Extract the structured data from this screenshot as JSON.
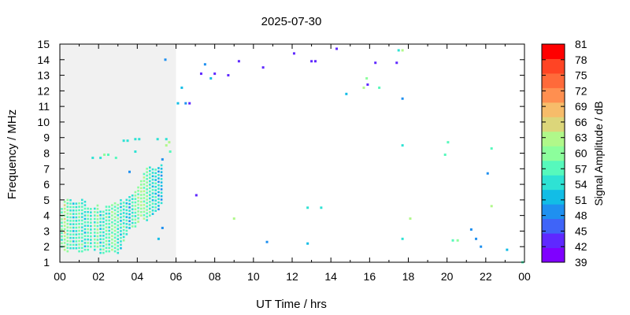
{
  "chart_data": {
    "type": "scatter",
    "title": "2025-07-30",
    "xlabel": "UT Time / hrs",
    "ylabel": "Frequency / MHz",
    "colorbar_label": "Signal Amplitude / dB",
    "xlim": [
      0,
      24
    ],
    "ylim": [
      1,
      15
    ],
    "x_ticks": [
      "00",
      "02",
      "04",
      "06",
      "08",
      "10",
      "12",
      "14",
      "16",
      "18",
      "20",
      "22",
      "00"
    ],
    "y_ticks": [
      "1",
      "2",
      "3",
      "4",
      "5",
      "6",
      "7",
      "8",
      "9",
      "10",
      "11",
      "12",
      "13",
      "14",
      "15"
    ],
    "colorbar_ticks": [
      "39",
      "42",
      "45",
      "48",
      "51",
      "54",
      "57",
      "60",
      "63",
      "66",
      "69",
      "72",
      "75",
      "78",
      "81"
    ],
    "colorbar_range": [
      39,
      81
    ],
    "colorbar_colors": [
      "#7f00ff",
      "#5f28ff",
      "#3f64f8",
      "#1f90f0",
      "#12bde6",
      "#2ee2d4",
      "#56f9bc",
      "#8cfe9c",
      "#b0f88a",
      "#dcd67a",
      "#f7bc6a",
      "#ff8f50",
      "#ff6a3a",
      "#ff4424",
      "#ff0000"
    ],
    "region_gray": {
      "x": [
        0,
        6
      ],
      "y": [
        1,
        15
      ]
    },
    "points": [
      [
        5.45,
        14.0,
        50
      ],
      [
        7.3,
        13.1,
        44
      ],
      [
        7.5,
        13.7,
        50
      ],
      [
        7.8,
        12.8,
        52
      ],
      [
        8.0,
        13.1,
        44
      ],
      [
        8.7,
        13.0,
        43
      ],
      [
        9.25,
        13.9,
        43
      ],
      [
        10.5,
        13.5,
        42
      ],
      [
        12.1,
        14.4,
        43
      ],
      [
        13.0,
        13.9,
        44
      ],
      [
        13.2,
        13.9,
        44
      ],
      [
        14.3,
        14.7,
        42
      ],
      [
        16.3,
        13.8,
        44
      ],
      [
        17.4,
        13.8,
        42
      ],
      [
        17.5,
        14.6,
        54
      ],
      [
        17.7,
        14.6,
        62
      ],
      [
        15.9,
        12.4,
        42
      ],
      [
        15.85,
        12.8,
        60
      ],
      [
        15.7,
        12.2,
        64
      ],
      [
        16.5,
        12.2,
        58
      ],
      [
        14.8,
        11.8,
        52
      ],
      [
        17.7,
        11.5,
        50
      ],
      [
        6.3,
        12.2,
        52
      ],
      [
        6.1,
        11.2,
        52
      ],
      [
        6.5,
        11.2,
        50
      ],
      [
        6.7,
        11.2,
        44
      ],
      [
        3.3,
        8.8,
        54
      ],
      [
        3.5,
        8.8,
        54
      ],
      [
        3.9,
        8.9,
        54
      ],
      [
        4.1,
        8.9,
        54
      ],
      [
        5.05,
        8.9,
        54
      ],
      [
        5.5,
        8.9,
        54
      ],
      [
        5.65,
        8.7,
        62
      ],
      [
        5.5,
        8.5,
        64
      ],
      [
        5.7,
        8.1,
        56
      ],
      [
        3.9,
        8.1,
        54
      ],
      [
        2.3,
        7.9,
        60
      ],
      [
        2.5,
        7.9,
        58
      ],
      [
        1.7,
        7.7,
        54
      ],
      [
        2.1,
        7.7,
        54
      ],
      [
        2.9,
        7.7,
        58
      ],
      [
        5.3,
        7.6,
        48
      ],
      [
        3.6,
        6.8,
        50
      ],
      [
        7.05,
        5.3,
        44
      ],
      [
        9.0,
        3.8,
        62
      ],
      [
        5.3,
        3.2,
        50
      ],
      [
        5.1,
        2.5,
        52
      ],
      [
        10.7,
        2.3,
        48
      ],
      [
        12.8,
        2.2,
        52
      ],
      [
        12.8,
        4.5,
        54
      ],
      [
        13.5,
        4.5,
        54
      ],
      [
        17.7,
        8.5,
        54
      ],
      [
        17.7,
        2.5,
        54
      ],
      [
        18.1,
        3.8,
        64
      ],
      [
        19.9,
        7.9,
        58
      ],
      [
        20.05,
        8.7,
        58
      ],
      [
        20.3,
        2.4,
        58
      ],
      [
        20.55,
        2.4,
        60
      ],
      [
        21.25,
        3.1,
        50
      ],
      [
        21.5,
        2.5,
        50
      ],
      [
        21.75,
        2.0,
        50
      ],
      [
        22.1,
        6.7,
        50
      ],
      [
        22.3,
        8.3,
        58
      ],
      [
        22.3,
        4.6,
        62
      ],
      [
        23.1,
        1.8,
        52
      ],
      [
        23.9,
        1.0,
        56
      ]
    ],
    "cluster_bars": [
      [
        0.1,
        2.0,
        4.6,
        58
      ],
      [
        0.25,
        1.8,
        4.9,
        62
      ],
      [
        0.4,
        1.7,
        5.0,
        58
      ],
      [
        0.55,
        1.9,
        5.0,
        56
      ],
      [
        0.7,
        1.9,
        4.8,
        54
      ],
      [
        0.85,
        1.9,
        4.9,
        56
      ],
      [
        1.0,
        1.7,
        4.8,
        58
      ],
      [
        1.15,
        1.7,
        5.0,
        56
      ],
      [
        1.3,
        1.8,
        4.9,
        54
      ],
      [
        1.45,
        1.8,
        4.6,
        58
      ],
      [
        1.6,
        2.0,
        4.6,
        56
      ],
      [
        1.8,
        1.8,
        4.5,
        58
      ],
      [
        1.95,
        2.0,
        4.8,
        60
      ],
      [
        2.1,
        1.6,
        4.4,
        54
      ],
      [
        2.25,
        1.6,
        4.4,
        56
      ],
      [
        2.4,
        1.7,
        4.6,
        58
      ],
      [
        2.55,
        1.7,
        4.7,
        56
      ],
      [
        2.7,
        1.8,
        4.7,
        60
      ],
      [
        2.85,
        1.7,
        4.9,
        58
      ],
      [
        3.0,
        1.6,
        4.8,
        56
      ],
      [
        3.15,
        1.9,
        5.0,
        54
      ],
      [
        3.3,
        2.4,
        4.9,
        56
      ],
      [
        3.45,
        2.8,
        5.2,
        54
      ],
      [
        3.6,
        3.2,
        5.3,
        52
      ],
      [
        3.75,
        3.3,
        5.4,
        56
      ],
      [
        3.9,
        3.3,
        5.6,
        58
      ],
      [
        4.05,
        3.6,
        5.9,
        60
      ],
      [
        4.2,
        4.0,
        6.2,
        62
      ],
      [
        4.35,
        3.8,
        6.8,
        60
      ],
      [
        4.5,
        3.7,
        7.1,
        58
      ],
      [
        4.65,
        4.0,
        7.1,
        56
      ],
      [
        4.8,
        4.1,
        7.1,
        54
      ],
      [
        4.95,
        4.3,
        7.0,
        54
      ],
      [
        5.1,
        4.4,
        7.1,
        52
      ],
      [
        5.25,
        4.8,
        7.3,
        52
      ]
    ]
  }
}
